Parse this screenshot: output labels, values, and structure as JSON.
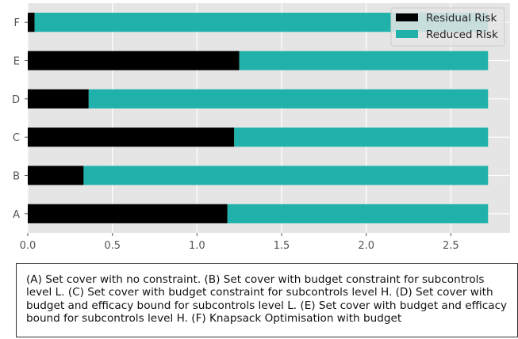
{
  "chart_data": {
    "type": "bar",
    "orientation": "horizontal",
    "stacked": true,
    "categories": [
      "A",
      "B",
      "C",
      "D",
      "E",
      "F"
    ],
    "series": [
      {
        "name": "Residual Risk",
        "color": "#000000",
        "values": [
          1.18,
          0.33,
          1.22,
          0.36,
          1.25,
          0.04
        ]
      },
      {
        "name": "Reduced Risk",
        "color": "#20b2aa",
        "values": [
          1.54,
          2.39,
          1.5,
          2.36,
          1.47,
          2.68
        ]
      }
    ],
    "xlim": [
      0,
      2.85
    ],
    "xticks": [
      "0.0",
      "0.5",
      "1.0",
      "1.5",
      "2.0",
      "2.5"
    ],
    "xlabel": "",
    "ylabel": "",
    "title": "",
    "grid": true,
    "background": "#e5e5e5",
    "legend_position": "top-right"
  },
  "caption": "(A) Set cover with no constraint. (B) Set cover with budget constraint for subcontrols level L. (C) Set cover with budget constraint for subcontrols level H. (D) Set cover with budget and efficacy bound for subcontrols level L. (E) Set cover with budget and efficacy bound for subcontrols level H. (F) Knapsack Optimisation with budget"
}
